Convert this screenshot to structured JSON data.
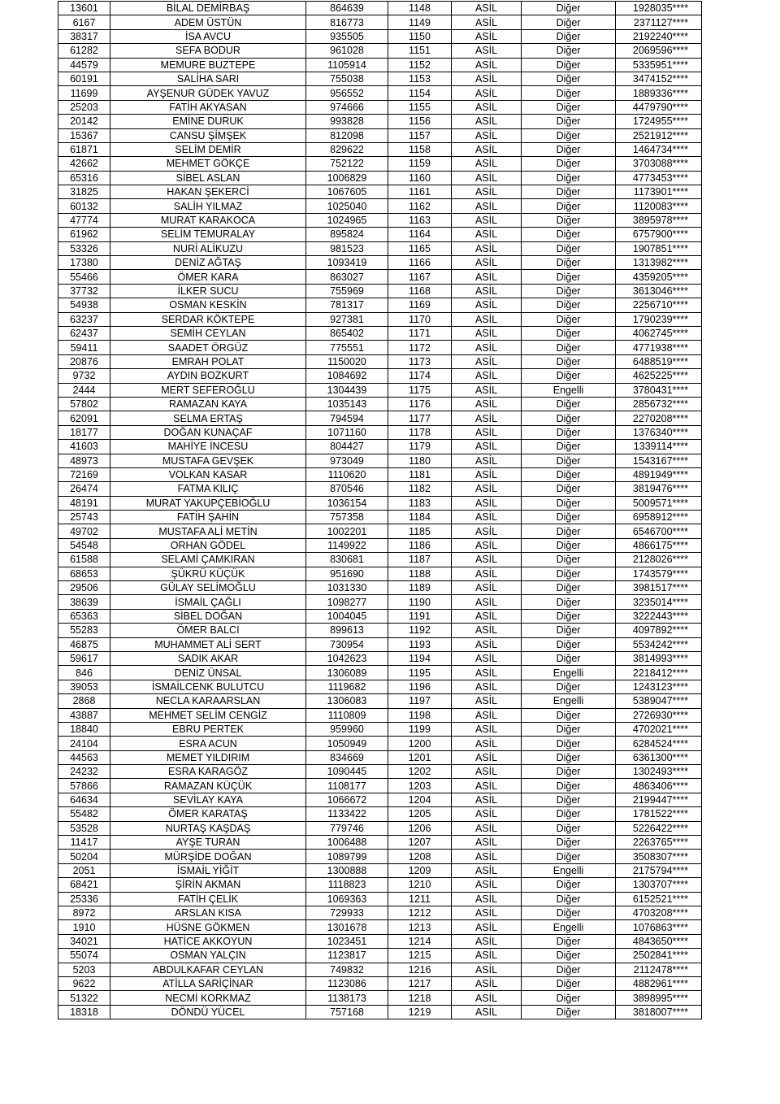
{
  "table": {
    "rows": [
      [
        "13601",
        "BİLAL DEMİRBAŞ",
        "864639",
        "1148",
        "ASİL",
        "Diğer",
        "1928035****"
      ],
      [
        "6167",
        "ADEM ÜSTÜN",
        "816773",
        "1149",
        "ASİL",
        "Diğer",
        "2371127****"
      ],
      [
        "38317",
        "İSA AVCU",
        "935505",
        "1150",
        "ASİL",
        "Diğer",
        "2192240****"
      ],
      [
        "61282",
        "SEFA BODUR",
        "961028",
        "1151",
        "ASİL",
        "Diğer",
        "2069596****"
      ],
      [
        "44579",
        "MEMURE BUZTEPE",
        "1105914",
        "1152",
        "ASİL",
        "Diğer",
        "5335951****"
      ],
      [
        "60191",
        "SALİHA SARI",
        "755038",
        "1153",
        "ASİL",
        "Diğer",
        "3474152****"
      ],
      [
        "11699",
        "AYŞENUR GÜDEK YAVUZ",
        "956552",
        "1154",
        "ASİL",
        "Diğer",
        "1889336****"
      ],
      [
        "25203",
        "FATİH AKYASAN",
        "974666",
        "1155",
        "ASİL",
        "Diğer",
        "4479790****"
      ],
      [
        "20142",
        "EMİNE DURUK",
        "993828",
        "1156",
        "ASİL",
        "Diğer",
        "1724955****"
      ],
      [
        "15367",
        "CANSU ŞİMŞEK",
        "812098",
        "1157",
        "ASİL",
        "Diğer",
        "2521912****"
      ],
      [
        "61871",
        "SELİM DEMİR",
        "829622",
        "1158",
        "ASİL",
        "Diğer",
        "1464734****"
      ],
      [
        "42662",
        "MEHMET GÖKÇE",
        "752122",
        "1159",
        "ASİL",
        "Diğer",
        "3703088****"
      ],
      [
        "65316",
        "SİBEL ASLAN",
        "1006829",
        "1160",
        "ASİL",
        "Diğer",
        "4773453****"
      ],
      [
        "31825",
        "HAKAN ŞEKERCİ",
        "1067605",
        "1161",
        "ASİL",
        "Diğer",
        "1173901****"
      ],
      [
        "60132",
        "SALİH YILMAZ",
        "1025040",
        "1162",
        "ASİL",
        "Diğer",
        "1120083****"
      ],
      [
        "47774",
        "MURAT KARAKOCA",
        "1024965",
        "1163",
        "ASİL",
        "Diğer",
        "3895978****"
      ],
      [
        "61962",
        "SELİM TEMURALAY",
        "895824",
        "1164",
        "ASİL",
        "Diğer",
        "6757900****"
      ],
      [
        "53326",
        "NURİ ALİKUZU",
        "981523",
        "1165",
        "ASİL",
        "Diğer",
        "1907851****"
      ],
      [
        "17380",
        "DENİZ AĞTAŞ",
        "1093419",
        "1166",
        "ASİL",
        "Diğer",
        "1313982****"
      ],
      [
        "55466",
        "ÖMER KARA",
        "863027",
        "1167",
        "ASİL",
        "Diğer",
        "4359205****"
      ],
      [
        "37732",
        "İLKER SUCU",
        "755969",
        "1168",
        "ASİL",
        "Diğer",
        "3613046****"
      ],
      [
        "54938",
        "OSMAN KESKİN",
        "781317",
        "1169",
        "ASİL",
        "Diğer",
        "2256710****"
      ],
      [
        "63237",
        "SERDAR KÖKTEPE",
        "927381",
        "1170",
        "ASİL",
        "Diğer",
        "1790239****"
      ],
      [
        "62437",
        "SEMİH CEYLAN",
        "865402",
        "1171",
        "ASİL",
        "Diğer",
        "4062745****"
      ],
      [
        "59411",
        "SAADET ÖRGÜZ",
        "775551",
        "1172",
        "ASİL",
        "Diğer",
        "4771938****"
      ],
      [
        "20876",
        "EMRAH POLAT",
        "1150020",
        "1173",
        "ASİL",
        "Diğer",
        "6488519****"
      ],
      [
        "9732",
        "AYDIN BOZKURT",
        "1084692",
        "1174",
        "ASİL",
        "Diğer",
        "4625225****"
      ],
      [
        "2444",
        "MERT SEFEROĞLU",
        "1304439",
        "1175",
        "ASİL",
        "Engelli",
        "3780431****"
      ],
      [
        "57802",
        "RAMAZAN KAYA",
        "1035143",
        "1176",
        "ASİL",
        "Diğer",
        "2856732****"
      ],
      [
        "62091",
        "SELMA ERTAŞ",
        "794594",
        "1177",
        "ASİL",
        "Diğer",
        "2270208****"
      ],
      [
        "18177",
        "DOĞAN KUNAÇAF",
        "1071160",
        "1178",
        "ASİL",
        "Diğer",
        "1376340****"
      ],
      [
        "41603",
        "MAHİYE İNCESU",
        "804427",
        "1179",
        "ASİL",
        "Diğer",
        "1339114****"
      ],
      [
        "48973",
        "MUSTAFA GEVŞEK",
        "973049",
        "1180",
        "ASİL",
        "Diğer",
        "1543167****"
      ],
      [
        "72169",
        "VOLKAN KASAR",
        "1110620",
        "1181",
        "ASİL",
        "Diğer",
        "4891949****"
      ],
      [
        "26474",
        "FATMA KILIÇ",
        "870546",
        "1182",
        "ASİL",
        "Diğer",
        "3819476****"
      ],
      [
        "48191",
        "MURAT YAKUPÇEBİOĞLU",
        "1036154",
        "1183",
        "ASİL",
        "Diğer",
        "5009571****"
      ],
      [
        "25743",
        "FATİH ŞAHİN",
        "757358",
        "1184",
        "ASİL",
        "Diğer",
        "6958912****"
      ],
      [
        "49702",
        "MUSTAFA ALİ METİN",
        "1002201",
        "1185",
        "ASİL",
        "Diğer",
        "6546700****"
      ],
      [
        "54548",
        "ORHAN GÖDEL",
        "1149922",
        "1186",
        "ASİL",
        "Diğer",
        "4866175****"
      ],
      [
        "61588",
        "SELAMİ ÇAMKIRAN",
        "830681",
        "1187",
        "ASİL",
        "Diğer",
        "2128026****"
      ],
      [
        "68653",
        "ŞÜKRÜ KÜÇÜK",
        "951690",
        "1188",
        "ASİL",
        "Diğer",
        "1743579****"
      ],
      [
        "29506",
        "GÜLAY SELİMOĞLU",
        "1031330",
        "1189",
        "ASİL",
        "Diğer",
        "3981517****"
      ],
      [
        "38639",
        "İSMAİL ÇAĞLI",
        "1098277",
        "1190",
        "ASİL",
        "Diğer",
        "3235014****"
      ],
      [
        "65363",
        "SİBEL DOĞAN",
        "1004045",
        "1191",
        "ASİL",
        "Diğer",
        "3222443****"
      ],
      [
        "55283",
        "ÖMER BALCI",
        "899613",
        "1192",
        "ASİL",
        "Diğer",
        "4097892****"
      ],
      [
        "46875",
        "MUHAMMET ALİ SERT",
        "730954",
        "1193",
        "ASİL",
        "Diğer",
        "5534242****"
      ],
      [
        "59617",
        "SADIK AKAR",
        "1042623",
        "1194",
        "ASİL",
        "Diğer",
        "3814993****"
      ],
      [
        "846",
        "DENİZ ÜNSAL",
        "1306089",
        "1195",
        "ASİL",
        "Engelli",
        "2218412****"
      ],
      [
        "39053",
        "İSMAİLCENK BULUTCU",
        "1119682",
        "1196",
        "ASİL",
        "Diğer",
        "1243123****"
      ],
      [
        "2868",
        "NECLA KARAARSLAN",
        "1306083",
        "1197",
        "ASİL",
        "Engelli",
        "5389047****"
      ],
      [
        "43887",
        "MEHMET SELİM CENGİZ",
        "1110809",
        "1198",
        "ASİL",
        "Diğer",
        "2726930****"
      ],
      [
        "18840",
        "EBRU PERTEK",
        "959960",
        "1199",
        "ASİL",
        "Diğer",
        "4702021****"
      ],
      [
        "24104",
        "ESRA ACUN",
        "1050949",
        "1200",
        "ASİL",
        "Diğer",
        "6284524****"
      ],
      [
        "44563",
        "MEMET YILDIRIM",
        "834669",
        "1201",
        "ASİL",
        "Diğer",
        "6361300****"
      ],
      [
        "24232",
        "ESRA KARAGÖZ",
        "1090445",
        "1202",
        "ASİL",
        "Diğer",
        "1302493****"
      ],
      [
        "57866",
        "RAMAZAN KÜÇÜK",
        "1108177",
        "1203",
        "ASİL",
        "Diğer",
        "4863406****"
      ],
      [
        "64634",
        "SEVİLAY KAYA",
        "1066672",
        "1204",
        "ASİL",
        "Diğer",
        "2199447****"
      ],
      [
        "55482",
        "ÖMER KARATAŞ",
        "1133422",
        "1205",
        "ASİL",
        "Diğer",
        "1781522****"
      ],
      [
        "53528",
        "NURTAŞ KAŞDAŞ",
        "779746",
        "1206",
        "ASİL",
        "Diğer",
        "5226422****"
      ],
      [
        "11417",
        "AYŞE TURAN",
        "1006488",
        "1207",
        "ASİL",
        "Diğer",
        "2263765****"
      ],
      [
        "50204",
        "MÜRŞİDE DOĞAN",
        "1089799",
        "1208",
        "ASİL",
        "Diğer",
        "3508307****"
      ],
      [
        "2051",
        "İSMAİL YİĞİT",
        "1300888",
        "1209",
        "ASİL",
        "Engelli",
        "2175794****"
      ],
      [
        "68421",
        "ŞİRİN AKMAN",
        "1118823",
        "1210",
        "ASİL",
        "Diğer",
        "1303707****"
      ],
      [
        "25336",
        "FATİH ÇELİK",
        "1069363",
        "1211",
        "ASİL",
        "Diğer",
        "6152521****"
      ],
      [
        "8972",
        "ARSLAN KISA",
        "729933",
        "1212",
        "ASİL",
        "Diğer",
        "4703208****"
      ],
      [
        "1910",
        "HÜSNE GÖKMEN",
        "1301678",
        "1213",
        "ASİL",
        "Engelli",
        "1076863****"
      ],
      [
        "34021",
        "HATİCE AKKOYUN",
        "1023451",
        "1214",
        "ASİL",
        "Diğer",
        "4843650****"
      ],
      [
        "55074",
        "OSMAN YALÇIN",
        "1123817",
        "1215",
        "ASİL",
        "Diğer",
        "2502841****"
      ],
      [
        "5203",
        "ABDULKAFAR CEYLAN",
        "749832",
        "1216",
        "ASİL",
        "Diğer",
        "2112478****"
      ],
      [
        "9622",
        "ATİLLA SARİÇİNAR",
        "1123086",
        "1217",
        "ASİL",
        "Diğer",
        "4882961****"
      ],
      [
        "51322",
        "NECMİ KORKMAZ",
        "1138173",
        "1218",
        "ASİL",
        "Diğer",
        "3898995****"
      ],
      [
        "18318",
        "DÖNDÜ YÜCEL",
        "757168",
        "1219",
        "ASİL",
        "Diğer",
        "3818007****"
      ]
    ]
  }
}
